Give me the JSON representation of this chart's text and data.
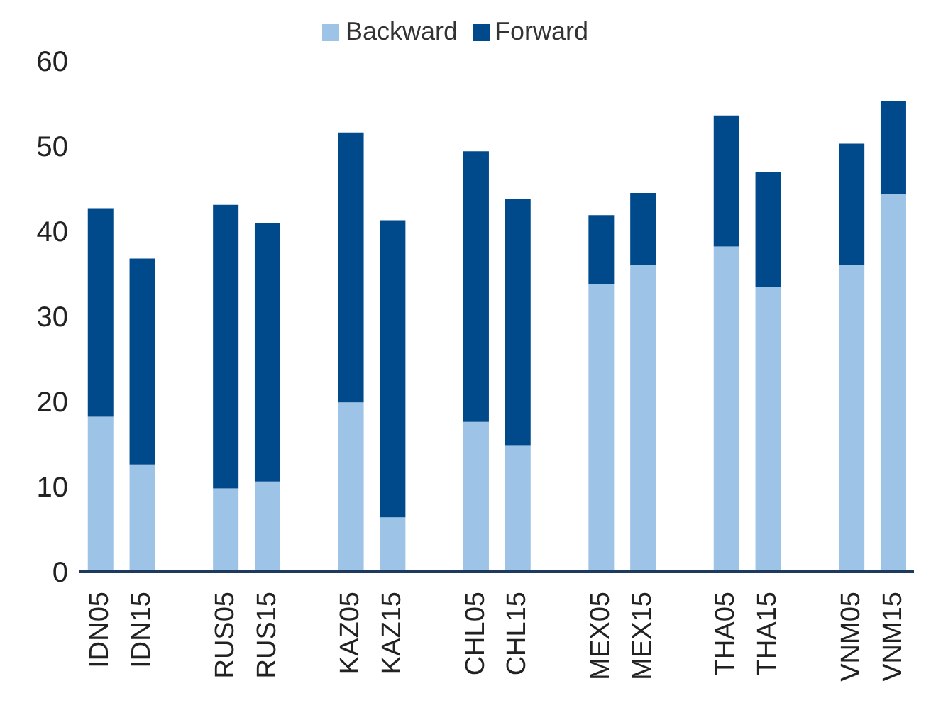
{
  "chart_data": {
    "type": "bar",
    "stacked": true,
    "categories": [
      "IDN05",
      "IDN15",
      null,
      "RUS05",
      "RUS15",
      null,
      "KAZ05",
      "KAZ15",
      null,
      "CHL05",
      "CHL15",
      null,
      "MEX05",
      "MEX15",
      null,
      "THA05",
      "THA15",
      null,
      "VNM05",
      "VNM15"
    ],
    "series": [
      {
        "name": "Backward",
        "color": "#9dc3e6",
        "values": [
          18.2,
          12.6,
          null,
          9.8,
          10.6,
          null,
          19.9,
          6.4,
          null,
          17.6,
          14.8,
          null,
          33.8,
          36.0,
          null,
          38.2,
          33.5,
          null,
          36.0,
          44.4
        ]
      },
      {
        "name": "Forward",
        "color": "#004a8c",
        "values": [
          24.5,
          24.2,
          null,
          33.3,
          30.4,
          null,
          31.7,
          34.9,
          null,
          31.8,
          29.0,
          null,
          8.1,
          8.5,
          null,
          15.4,
          13.5,
          null,
          14.3,
          10.9
        ]
      }
    ],
    "ylim": [
      0,
      60
    ],
    "yticks": [
      0,
      10,
      20,
      30,
      40,
      50,
      60
    ],
    "legend": "top"
  }
}
